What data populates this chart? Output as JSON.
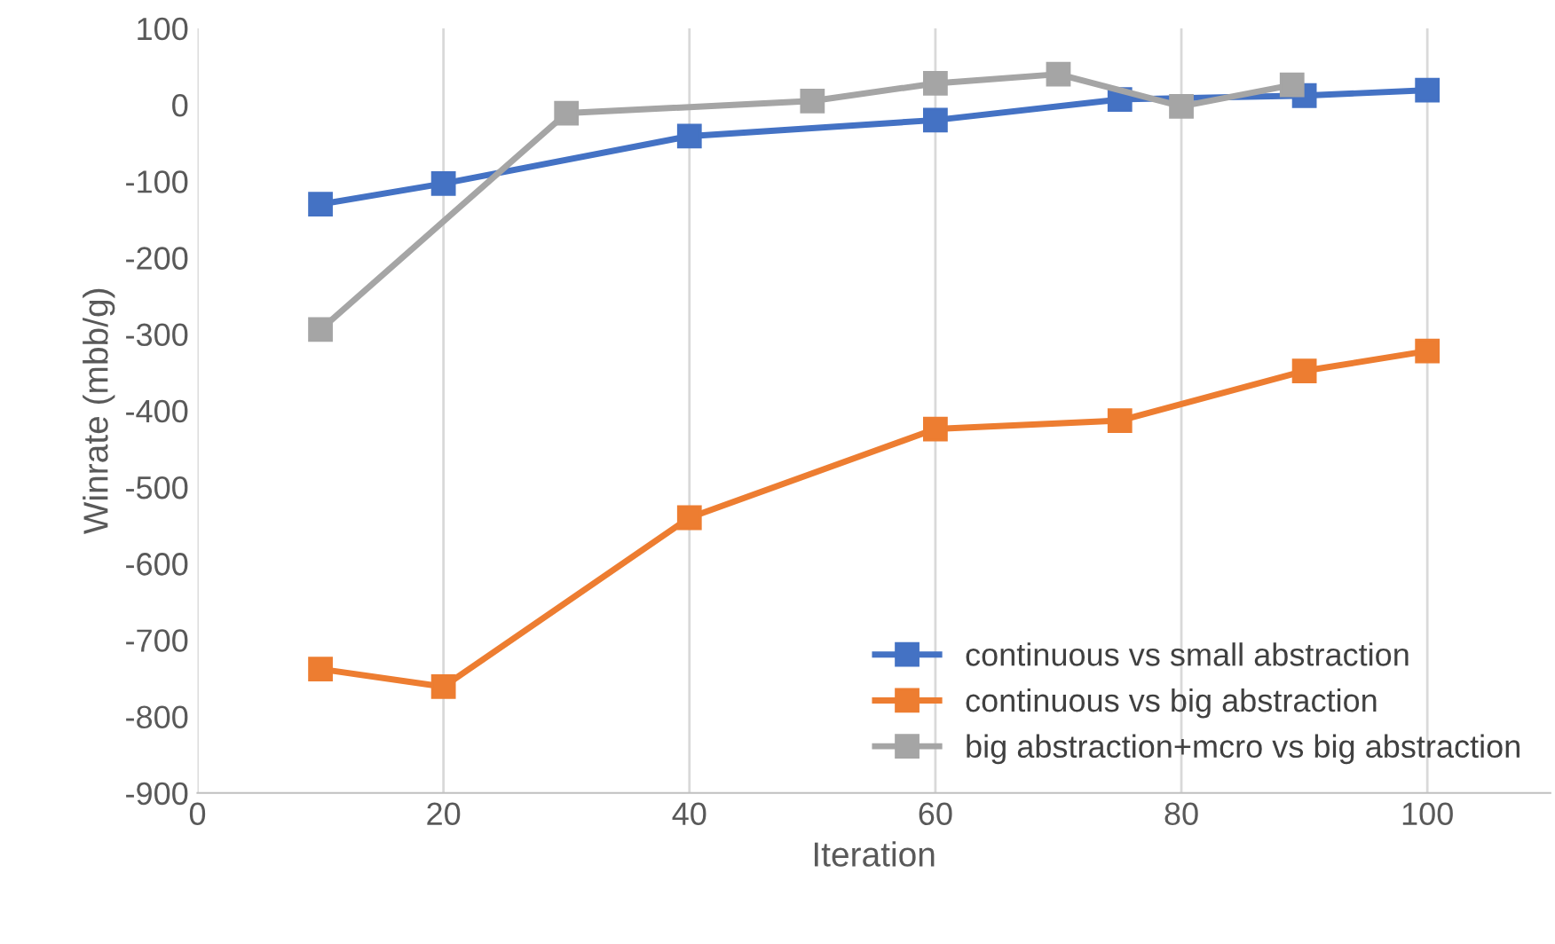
{
  "chart_data": {
    "type": "line",
    "xlabel": "Iteration",
    "ylabel": "Winrate (mbb/g)",
    "xlim": [
      0,
      110
    ],
    "xticks": [
      0,
      20,
      40,
      60,
      80,
      100
    ],
    "ylim": [
      -900,
      100
    ],
    "yticks": [
      -900,
      -800,
      -700,
      -600,
      -500,
      -400,
      -300,
      -200,
      -100,
      0,
      100
    ],
    "grid": "x",
    "legend": "bottom right",
    "marker": "square",
    "line_style": "solid",
    "series": [
      {
        "name": "continuous vs small abstraction",
        "color": "#4472c4",
        "x": [
          10,
          20,
          40,
          60,
          75,
          90,
          100
        ],
        "values": [
          -130,
          -103,
          -41,
          -20,
          7,
          12,
          19
        ]
      },
      {
        "name": "continuous vs big abstraction",
        "color": "#ed7d31",
        "x": [
          10,
          20,
          40,
          60,
          75,
          90,
          100
        ],
        "values": [
          -738,
          -761,
          -540,
          -424,
          -413,
          -348,
          -322
        ]
      },
      {
        "name": "big abstraction+mcro vs big abstraction",
        "color": "#a5a5a5",
        "x": [
          10,
          30,
          50,
          60,
          70,
          80,
          89
        ],
        "values": [
          -294,
          -11,
          5,
          28,
          40,
          -2,
          26
        ]
      }
    ]
  }
}
